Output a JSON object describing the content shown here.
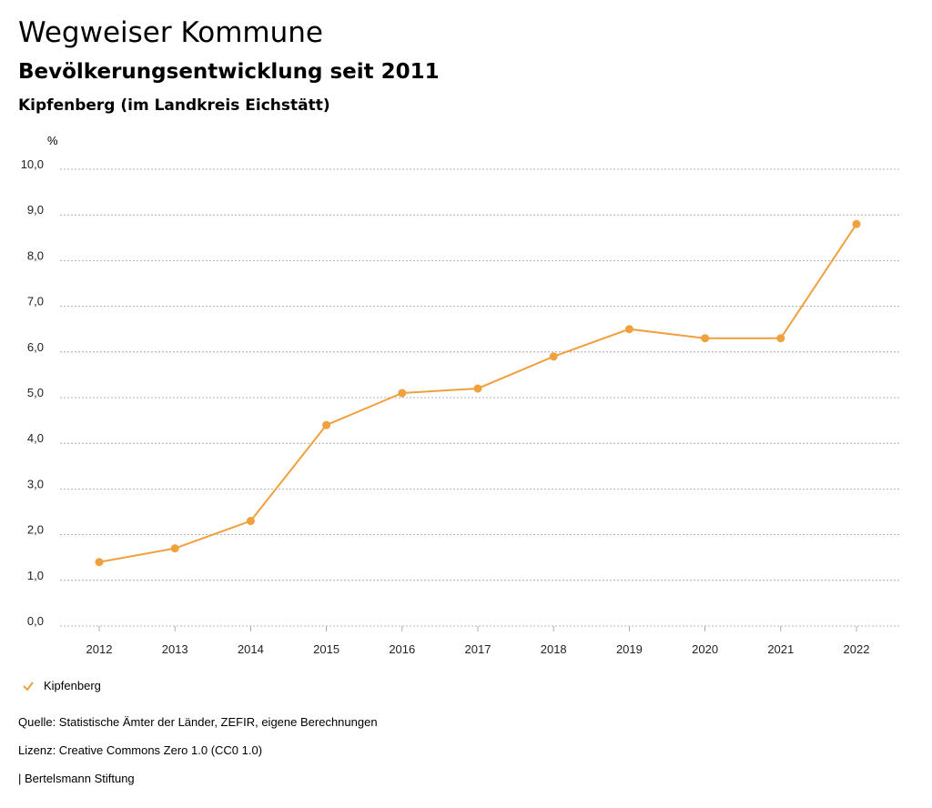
{
  "header": {
    "title": "Wegweiser Kommune",
    "subtitle": "Bevölkerungsentwicklung seit 2011",
    "region": "Kipfenberg (im Landkreis Eichstätt)"
  },
  "chart_data": {
    "type": "line",
    "unit_label": "%",
    "categories": [
      "2012",
      "2013",
      "2014",
      "2015",
      "2016",
      "2017",
      "2018",
      "2019",
      "2020",
      "2021",
      "2022"
    ],
    "series": [
      {
        "name": "Kipfenberg",
        "values": [
          1.4,
          1.7,
          2.3,
          4.4,
          5.1,
          5.2,
          5.9,
          6.5,
          6.3,
          6.3,
          8.8
        ]
      }
    ],
    "ylim": [
      0,
      10
    ],
    "yticks": [
      "0,0",
      "1,0",
      "2,0",
      "3,0",
      "4,0",
      "5,0",
      "6,0",
      "7,0",
      "8,0",
      "9,0",
      "10,0"
    ],
    "grid": true,
    "color": "#f0a03c"
  },
  "legend": {
    "label": "Kipfenberg"
  },
  "footer": {
    "source": "Quelle: Statistische Ämter der Länder, ZEFIR, eigene Berechnungen",
    "license": "Lizenz: Creative Commons Zero 1.0 (CC0 1.0)",
    "brand": "| Bertelsmann Stiftung"
  }
}
